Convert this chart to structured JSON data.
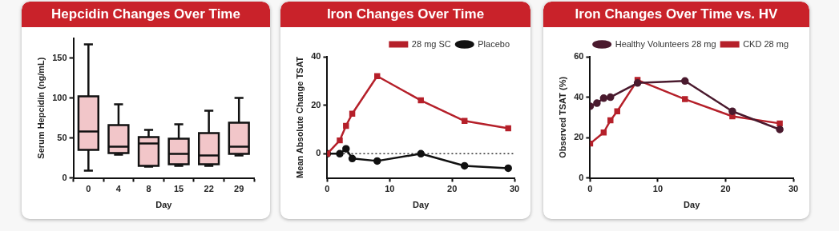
{
  "chart_data": [
    {
      "type": "box",
      "title": "Hepcidin Changes Over Time",
      "xlabel": "Day",
      "ylabel": "Serum Hepcidin (ng/mL)",
      "categories": [
        "0",
        "4",
        "8",
        "15",
        "22",
        "29"
      ],
      "color": "#f2c6c9",
      "ylim": [
        0,
        175
      ],
      "yticks": [
        0,
        50,
        100,
        150
      ],
      "boxes": [
        {
          "low": 9,
          "q1": 35,
          "median": 58,
          "q3": 102,
          "high": 167
        },
        {
          "low": 29,
          "q1": 31,
          "median": 39,
          "q3": 66,
          "high": 92
        },
        {
          "low": 14,
          "q1": 15,
          "median": 43,
          "q3": 51,
          "high": 60
        },
        {
          "low": 15,
          "q1": 17,
          "median": 30,
          "q3": 49,
          "high": 67
        },
        {
          "low": 15,
          "q1": 17,
          "median": 28,
          "q3": 56,
          "high": 84
        },
        {
          "low": 28,
          "q1": 30,
          "median": 39,
          "q3": 69,
          "high": 100
        }
      ]
    },
    {
      "type": "line",
      "title": "Iron Changes Over Time",
      "xlabel": "Day",
      "ylabel": "Mean Absolute Change TSAT",
      "xlim": [
        0,
        30
      ],
      "xticks": [
        0,
        10,
        20,
        30
      ],
      "ylim": [
        -10,
        40
      ],
      "yticks": [
        0,
        20,
        40
      ],
      "legend": "top right",
      "series": [
        {
          "name": "28 mg SC",
          "color": "#b5202a",
          "marker": "square",
          "x": [
            0,
            2,
            3,
            4,
            8,
            15,
            22,
            29
          ],
          "values": [
            0,
            5.5,
            11.5,
            16.5,
            32,
            22,
            13.5,
            10.5
          ]
        },
        {
          "name": "Placebo",
          "color": "#111111",
          "marker": "circle",
          "x": [
            0,
            2,
            3,
            4,
            8,
            15,
            22,
            29
          ],
          "values": [
            0,
            0,
            2,
            -2,
            -3,
            0,
            -5,
            -6
          ]
        }
      ],
      "ref_lines": [
        {
          "axis": "y",
          "value": 0,
          "color": "#333333",
          "line_style": "dotted"
        }
      ]
    },
    {
      "type": "line",
      "title": "Iron Changes Over Time vs. HV",
      "xlabel": "Day",
      "ylabel": "Observed TSAT (%)",
      "xlim": [
        0,
        30
      ],
      "xticks": [
        0,
        10,
        20,
        30
      ],
      "ylim": [
        0,
        60
      ],
      "yticks": [
        0,
        20,
        40,
        60
      ],
      "legend": "top right",
      "series": [
        {
          "name": "Healthy Volunteers 28 mg",
          "color": "#4a1a2e",
          "marker": "circle",
          "x": [
            0,
            1,
            2,
            3,
            7,
            14,
            21,
            28
          ],
          "values": [
            35.5,
            37,
            39.5,
            40,
            47,
            48,
            33,
            24
          ]
        },
        {
          "name": "CKD 28 mg",
          "color": "#b5202a",
          "marker": "square",
          "x": [
            0,
            2,
            3,
            4,
            7,
            14,
            21,
            28
          ],
          "values": [
            17,
            22.5,
            28.5,
            33,
            48.5,
            39,
            30.5,
            27
          ]
        }
      ]
    }
  ]
}
